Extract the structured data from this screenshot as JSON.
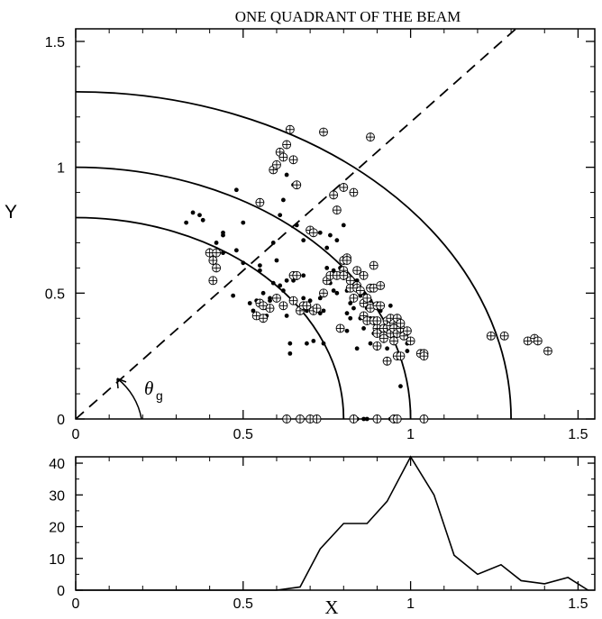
{
  "chart_data": [
    {
      "type": "scatter",
      "title": "ONE QUADRANT OF THE BEAM",
      "ylabel": "Y",
      "xlim": [
        0,
        1.55
      ],
      "ylim": [
        0,
        1.55
      ],
      "xticks": [
        "0",
        "0.5",
        "1",
        "1.5"
      ],
      "yticks": [
        "0",
        "0.5",
        "1",
        "1.5"
      ],
      "grid": false,
      "angle_label": "θ",
      "angle_subscript": "g",
      "arcs": [
        0.8,
        1.0,
        1.3
      ],
      "dashed_line_angle_deg": 49.7,
      "series": [
        {
          "marker": "dot",
          "points": [
            [
              0.33,
              0.78
            ],
            [
              0.35,
              0.82
            ],
            [
              0.37,
              0.81
            ],
            [
              0.38,
              0.79
            ],
            [
              0.4,
              0.67
            ],
            [
              0.42,
              0.7
            ],
            [
              0.44,
              0.74
            ],
            [
              0.44,
              0.73
            ],
            [
              0.44,
              0.66
            ],
            [
              0.47,
              0.49
            ],
            [
              0.48,
              0.67
            ],
            [
              0.48,
              0.91
            ],
            [
              0.5,
              0.78
            ],
            [
              0.5,
              0.62
            ],
            [
              0.52,
              0.46
            ],
            [
              0.53,
              0.43
            ],
            [
              0.54,
              0.47
            ],
            [
              0.55,
              0.61
            ],
            [
              0.55,
              0.59
            ],
            [
              0.56,
              0.5
            ],
            [
              0.57,
              0.44
            ],
            [
              0.57,
              0.41
            ],
            [
              0.58,
              0.48
            ],
            [
              0.58,
              0.47
            ],
            [
              0.59,
              0.7
            ],
            [
              0.59,
              0.54
            ],
            [
              0.6,
              0.63
            ],
            [
              0.61,
              0.81
            ],
            [
              0.61,
              0.53
            ],
            [
              0.62,
              0.87
            ],
            [
              0.62,
              0.51
            ],
            [
              0.63,
              0.97
            ],
            [
              0.63,
              0.41
            ],
            [
              0.63,
              0.55
            ],
            [
              0.64,
              0.3
            ],
            [
              0.64,
              0.26
            ],
            [
              0.65,
              0.55
            ],
            [
              0.65,
              0.93
            ],
            [
              0.66,
              0.56
            ],
            [
              0.66,
              0.77
            ],
            [
              0.68,
              0.71
            ],
            [
              0.68,
              0.48
            ],
            [
              0.68,
              0.57
            ],
            [
              0.69,
              0.43
            ],
            [
              0.69,
              0.3
            ],
            [
              0.7,
              0.47
            ],
            [
              0.71,
              0.31
            ],
            [
              0.73,
              0.74
            ],
            [
              0.73,
              0.48
            ],
            [
              0.73,
              0.42
            ],
            [
              0.74,
              0.3
            ],
            [
              0.74,
              0.43
            ],
            [
              0.75,
              0.68
            ],
            [
              0.75,
              0.6
            ],
            [
              0.76,
              0.73
            ],
            [
              0.76,
              0.54
            ],
            [
              0.77,
              0.59
            ],
            [
              0.77,
              0.51
            ],
            [
              0.78,
              0.71
            ],
            [
              0.78,
              0.5
            ],
            [
              0.79,
              0.6
            ],
            [
              0.8,
              0.64
            ],
            [
              0.8,
              0.77
            ],
            [
              0.8,
              0.56
            ],
            [
              0.81,
              0.42
            ],
            [
              0.81,
              0.51
            ],
            [
              0.81,
              0.35
            ],
            [
              0.82,
              0.4
            ],
            [
              0.82,
              0.46
            ],
            [
              0.83,
              0.44
            ],
            [
              0.84,
              0.28
            ],
            [
              0.84,
              0.55
            ],
            [
              0.85,
              0.49
            ],
            [
              0.85,
              0.4
            ],
            [
              0.86,
              0.41
            ],
            [
              0.86,
              0.36
            ],
            [
              0.86,
              0.5
            ],
            [
              0.87,
              0.44
            ],
            [
              0.88,
              0.47
            ],
            [
              0.88,
              0.3
            ],
            [
              0.88,
              0.4
            ],
            [
              0.89,
              0.34
            ],
            [
              0.9,
              0.28
            ],
            [
              0.9,
              0.37
            ],
            [
              0.91,
              0.43
            ],
            [
              0.91,
              0.36
            ],
            [
              0.92,
              0.31
            ],
            [
              0.93,
              0.39
            ],
            [
              0.93,
              0.28
            ],
            [
              0.93,
              0.35
            ],
            [
              0.94,
              0.45
            ],
            [
              0.94,
              0.37
            ],
            [
              0.95,
              0.33
            ],
            [
              0.95,
              0.4
            ],
            [
              0.96,
              0.36
            ],
            [
              0.97,
              0.13
            ],
            [
              0.99,
              0.3
            ],
            [
              0.99,
              0.27
            ],
            [
              0.84,
              0.0
            ],
            [
              0.86,
              0.0
            ],
            [
              0.87,
              0.0
            ],
            [
              0.94,
              0.0
            ]
          ]
        },
        {
          "marker": "circle-plus",
          "points": [
            [
              0.4,
              0.66
            ],
            [
              0.41,
              0.63
            ],
            [
              0.41,
              0.55
            ],
            [
              0.42,
              0.6
            ],
            [
              0.42,
              0.66
            ],
            [
              0.54,
              0.41
            ],
            [
              0.55,
              0.86
            ],
            [
              0.55,
              0.46
            ],
            [
              0.56,
              0.45
            ],
            [
              0.56,
              0.4
            ],
            [
              0.58,
              0.44
            ],
            [
              0.59,
              0.99
            ],
            [
              0.6,
              0.48
            ],
            [
              0.6,
              1.01
            ],
            [
              0.61,
              1.06
            ],
            [
              0.62,
              0.45
            ],
            [
              0.62,
              1.04
            ],
            [
              0.63,
              1.09
            ],
            [
              0.64,
              1.15
            ],
            [
              0.65,
              0.47
            ],
            [
              0.65,
              0.57
            ],
            [
              0.65,
              1.03
            ],
            [
              0.66,
              0.57
            ],
            [
              0.66,
              0.93
            ],
            [
              0.67,
              0.43
            ],
            [
              0.68,
              0.45
            ],
            [
              0.69,
              0.45
            ],
            [
              0.7,
              0.75
            ],
            [
              0.71,
              0.74
            ],
            [
              0.71,
              0.43
            ],
            [
              0.72,
              0.44
            ],
            [
              0.74,
              1.14
            ],
            [
              0.74,
              0.5
            ],
            [
              0.75,
              0.55
            ],
            [
              0.76,
              0.57
            ],
            [
              0.77,
              0.89
            ],
            [
              0.78,
              0.83
            ],
            [
              0.78,
              0.57
            ],
            [
              0.79,
              0.36
            ],
            [
              0.8,
              0.59
            ],
            [
              0.8,
              0.57
            ],
            [
              0.8,
              0.63
            ],
            [
              0.8,
              0.92
            ],
            [
              0.81,
              0.64
            ],
            [
              0.81,
              0.63
            ],
            [
              0.82,
              0.52
            ],
            [
              0.82,
              0.55
            ],
            [
              0.83,
              0.9
            ],
            [
              0.83,
              0.48
            ],
            [
              0.84,
              0.59
            ],
            [
              0.84,
              0.53
            ],
            [
              0.84,
              0.52
            ],
            [
              0.85,
              0.51
            ],
            [
              0.86,
              0.41
            ],
            [
              0.86,
              0.46
            ],
            [
              0.86,
              0.57
            ],
            [
              0.87,
              0.39
            ],
            [
              0.87,
              0.48
            ],
            [
              0.88,
              0.44
            ],
            [
              0.88,
              0.52
            ],
            [
              0.88,
              1.12
            ],
            [
              0.89,
              0.39
            ],
            [
              0.89,
              0.52
            ],
            [
              0.89,
              0.61
            ],
            [
              0.9,
              0.45
            ],
            [
              0.9,
              0.36
            ],
            [
              0.9,
              0.34
            ],
            [
              0.9,
              0.29
            ],
            [
              0.9,
              0.39
            ],
            [
              0.91,
              0.53
            ],
            [
              0.91,
              0.45
            ],
            [
              0.92,
              0.33
            ],
            [
              0.92,
              0.36
            ],
            [
              0.92,
              0.32
            ],
            [
              0.93,
              0.36
            ],
            [
              0.93,
              0.39
            ],
            [
              0.93,
              0.23
            ],
            [
              0.94,
              0.37
            ],
            [
              0.94,
              0.34
            ],
            [
              0.94,
              0.4
            ],
            [
              0.95,
              0.38
            ],
            [
              0.95,
              0.36
            ],
            [
              0.95,
              0.31
            ],
            [
              0.96,
              0.4
            ],
            [
              0.96,
              0.34
            ],
            [
              0.96,
              0.25
            ],
            [
              0.97,
              0.36
            ],
            [
              0.97,
              0.25
            ],
            [
              0.97,
              0.38
            ],
            [
              0.98,
              0.33
            ],
            [
              0.99,
              0.35
            ],
            [
              1.0,
              0.31
            ],
            [
              1.03,
              0.26
            ],
            [
              1.04,
              0.26
            ],
            [
              1.04,
              0.25
            ],
            [
              1.04,
              0.0
            ],
            [
              0.63,
              0.0
            ],
            [
              0.67,
              0.0
            ],
            [
              0.7,
              0.0
            ],
            [
              0.72,
              0.0
            ],
            [
              0.83,
              0.0
            ],
            [
              0.9,
              0.0
            ],
            [
              0.95,
              0.0
            ],
            [
              0.96,
              0.0
            ],
            [
              1.24,
              0.33
            ],
            [
              1.28,
              0.33
            ],
            [
              1.35,
              0.31
            ],
            [
              1.37,
              0.32
            ],
            [
              1.38,
              0.31
            ],
            [
              1.41,
              0.27
            ]
          ]
        }
      ]
    },
    {
      "type": "line",
      "xlabel": "X",
      "xlim": [
        0,
        1.55
      ],
      "ylim": [
        0,
        42
      ],
      "xticks": [
        "0",
        "0.5",
        "1",
        "1.5"
      ],
      "yticks": [
        "0",
        "10",
        "20",
        "30",
        "40"
      ],
      "grid": false,
      "x": [
        0,
        0.6,
        0.67,
        0.73,
        0.8,
        0.87,
        0.93,
        1.0,
        1.07,
        1.13,
        1.2,
        1.27,
        1.33,
        1.4,
        1.47,
        1.53
      ],
      "values": [
        0,
        0,
        1,
        13,
        21,
        21,
        28,
        42,
        30,
        11,
        5,
        8,
        3,
        2,
        4,
        0
      ]
    }
  ]
}
